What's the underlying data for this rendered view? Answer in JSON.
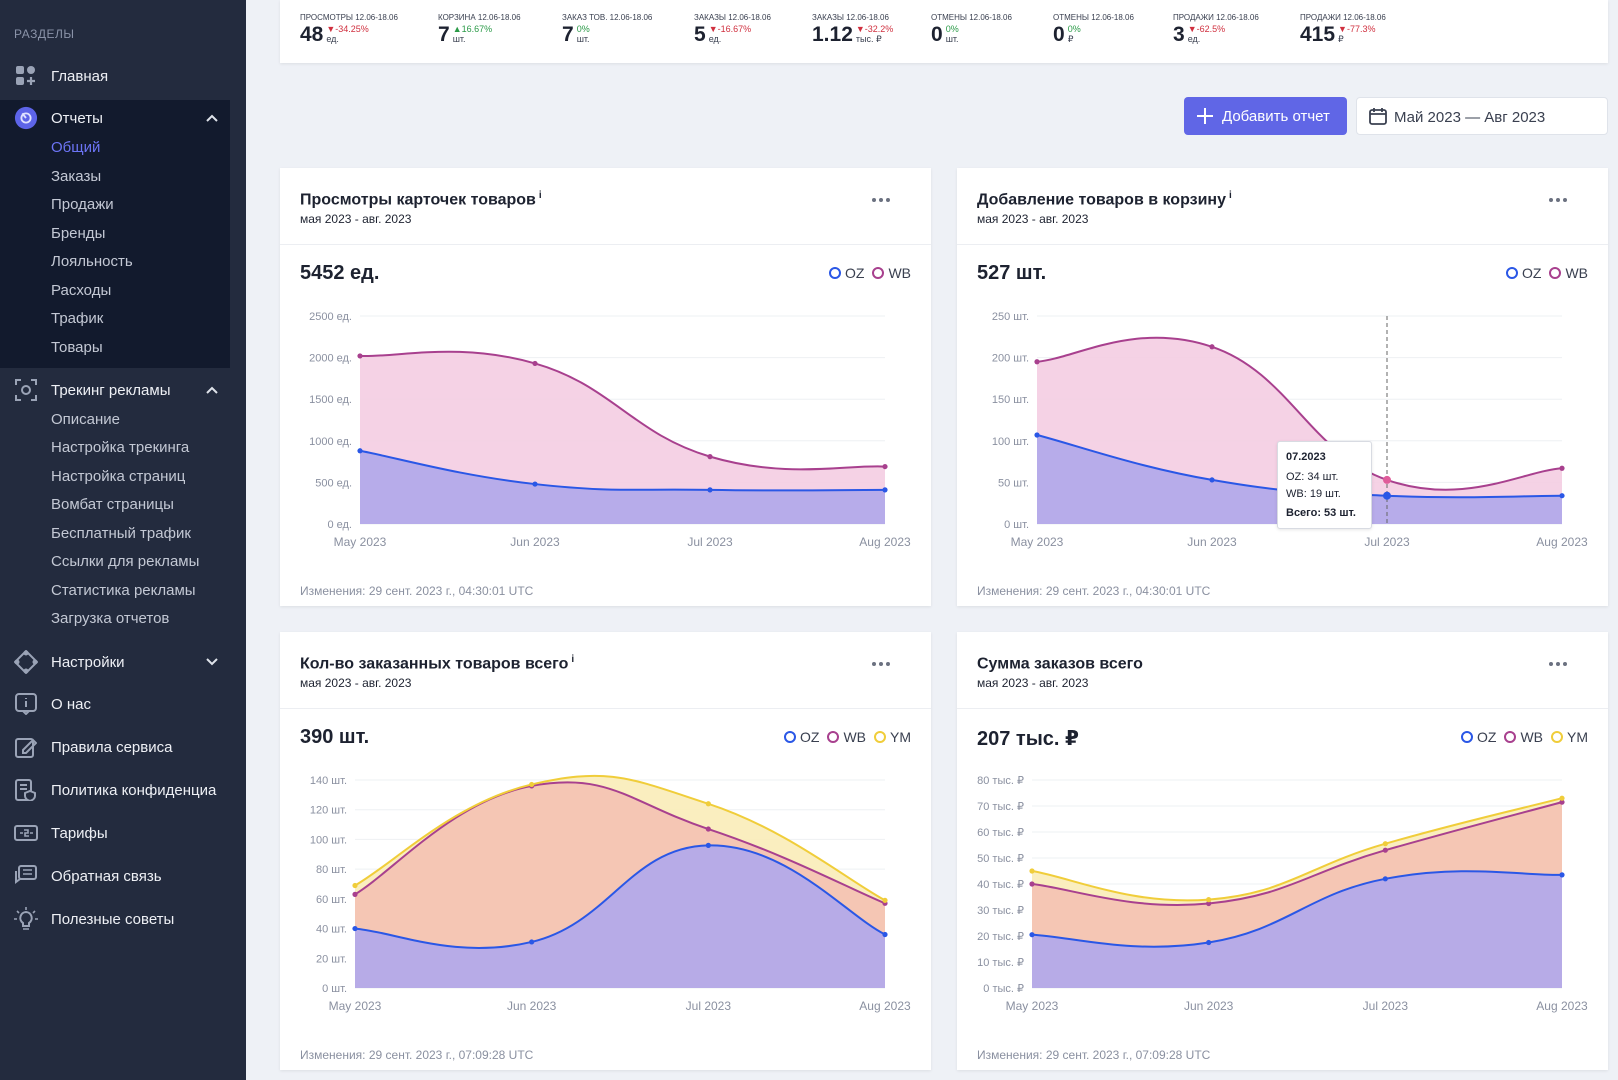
{
  "sidebar": {
    "title": "РАЗДЕЛЫ",
    "items": [
      {
        "label": "Главная"
      },
      {
        "label": "Отчеты"
      },
      {
        "label": "Трекинг рекламы"
      },
      {
        "label": "Настройки"
      },
      {
        "label": "О нас"
      },
      {
        "label": "Правила сервиса"
      },
      {
        "label": "Политика конфиденциа"
      },
      {
        "label": "Тарифы"
      },
      {
        "label": "Обратная связь"
      },
      {
        "label": "Полезные советы"
      }
    ],
    "reports_sub": [
      "Общий",
      "Заказы",
      "Продажи",
      "Бренды",
      "Лояльность",
      "Расходы",
      "Трафик",
      "Товары"
    ],
    "tracking_sub": [
      "Описание",
      "Настройка трекинга",
      "Настройка страниц",
      "Вомбат страницы",
      "Бесплатный трафик",
      "Ссылки для рекламы",
      "Статистика рекламы",
      "Загрузка отчетов"
    ]
  },
  "kpis": [
    {
      "title": "Просмотры 12.06-18.06",
      "value": "48",
      "delta": "▼-34.25%",
      "dir": "down",
      "unit": "ед."
    },
    {
      "title": "Корзина 12.06-18.06",
      "value": "7",
      "delta": "▲16.67%",
      "dir": "up",
      "unit": "шт."
    },
    {
      "title": "Заказ тов. 12.06-18.06",
      "value": "7",
      "delta": "0%",
      "dir": "up",
      "unit": "шт."
    },
    {
      "title": "Заказы 12.06-18.06",
      "value": "5",
      "delta": "▼-16.67%",
      "dir": "down",
      "unit": "ед."
    },
    {
      "title": "Заказы 12.06-18.06",
      "value": "1.12",
      "delta": "▼-32.2%",
      "dir": "down",
      "unit": "тыс. ₽"
    },
    {
      "title": "Отмены 12.06-18.06",
      "value": "0",
      "delta": "0%",
      "dir": "up",
      "unit": "шт."
    },
    {
      "title": "Отмены 12.06-18.06",
      "value": "0",
      "delta": "0%",
      "dir": "up",
      "unit": "₽"
    },
    {
      "title": "Продажи 12.06-18.06",
      "value": "3",
      "delta": "▼-62.5%",
      "dir": "down",
      "unit": "ед."
    },
    {
      "title": "Продажи 12.06-18.06",
      "value": "415",
      "delta": "▼-77.3%",
      "dir": "down",
      "unit": "₽"
    }
  ],
  "toolbar": {
    "add_label": "Добавить отчет",
    "date_range": "Май 2023 — Авг 2023"
  },
  "colors": {
    "OZ": "#2a57e6",
    "WB": "#a8408e",
    "YM": "#f0cd3a",
    "accent": "#6066e6"
  },
  "cards": [
    {
      "title": "Просмотры карточек товаров",
      "info": "i",
      "subtitle": "мая 2023 - авг. 2023",
      "total": "5452 ед.",
      "footer": "Изменения: 29 сент. 2023 г., 04:30:01 UTC",
      "legend": [
        "OZ",
        "WB"
      ]
    },
    {
      "title": "Добавление товаров в корзину",
      "info": "i",
      "subtitle": "мая 2023 - авг. 2023",
      "total": "527 шт.",
      "footer": "Изменения: 29 сент. 2023 г., 04:30:01 UTC",
      "legend": [
        "OZ",
        "WB"
      ],
      "tooltip": {
        "date": "07.2023",
        "oz": "OZ: 34 шт.",
        "wb": "WB: 19 шт.",
        "total": "Всего: 53 шт."
      }
    },
    {
      "title": "Кол-во заказанных товаров всего",
      "info": "i",
      "subtitle": "мая 2023 - авг. 2023",
      "total": "390 шт.",
      "footer": "Изменения: 29 сент. 2023 г., 07:09:28 UTC",
      "legend": [
        "OZ",
        "WB",
        "YM"
      ]
    },
    {
      "title": "Сумма заказов всего",
      "info": "",
      "subtitle": "мая 2023 - авг. 2023",
      "total": "207 тыс. ₽",
      "footer": "Изменения: 29 сент. 2023 г., 07:09:28 UTC",
      "legend": [
        "OZ",
        "WB",
        "YM"
      ]
    }
  ],
  "chart_data": [
    {
      "type": "area",
      "title": "Просмотры карточек товаров",
      "categories": [
        "May 2023",
        "Jun 2023",
        "Jul 2023",
        "Aug 2023"
      ],
      "ylim": [
        0,
        2500
      ],
      "yticks": [
        0,
        500,
        1000,
        1500,
        2000,
        2500
      ],
      "yunit": "ед.",
      "stacked": true,
      "series": [
        {
          "name": "OZ",
          "values": [
            880,
            480,
            410,
            410
          ]
        },
        {
          "name": "WB",
          "values": [
            1140,
            1450,
            400,
            280
          ]
        }
      ]
    },
    {
      "type": "area",
      "title": "Добавление товаров в корзину",
      "categories": [
        "May 2023",
        "Jun 2023",
        "Jul 2023",
        "Aug 2023"
      ],
      "ylim": [
        0,
        250
      ],
      "yticks": [
        0,
        50,
        100,
        150,
        200,
        250
      ],
      "yunit": "шт.",
      "stacked": true,
      "series": [
        {
          "name": "OZ",
          "values": [
            107,
            53,
            34,
            34
          ]
        },
        {
          "name": "WB",
          "values": [
            88,
            160,
            19,
            33
          ]
        }
      ]
    },
    {
      "type": "area",
      "title": "Кол-во заказанных товаров всего",
      "categories": [
        "May 2023",
        "Jun 2023",
        "Jul 2023",
        "Aug 2023"
      ],
      "ylim": [
        0,
        140
      ],
      "yticks": [
        0,
        20,
        40,
        60,
        80,
        100,
        120,
        140
      ],
      "yunit": "шт.",
      "stacked": true,
      "series": [
        {
          "name": "OZ",
          "values": [
            40,
            31,
            96,
            36
          ]
        },
        {
          "name": "WB",
          "values": [
            23,
            105,
            11,
            21
          ]
        },
        {
          "name": "YM",
          "values": [
            6,
            1,
            17,
            2
          ]
        }
      ]
    },
    {
      "type": "area",
      "title": "Сумма заказов всего",
      "categories": [
        "May 2023",
        "Jun 2023",
        "Jul 2023",
        "Aug 2023"
      ],
      "ylim": [
        0,
        80
      ],
      "yticks": [
        0,
        10,
        20,
        30,
        40,
        50,
        60,
        70,
        80
      ],
      "yunit": "тыс. ₽",
      "stacked": true,
      "series": [
        {
          "name": "OZ",
          "values": [
            20.5,
            17.5,
            42,
            43.5
          ]
        },
        {
          "name": "WB",
          "values": [
            19.5,
            15,
            11,
            28
          ]
        },
        {
          "name": "YM",
          "values": [
            5,
            1.5,
            2.5,
            1.5
          ]
        }
      ]
    }
  ]
}
